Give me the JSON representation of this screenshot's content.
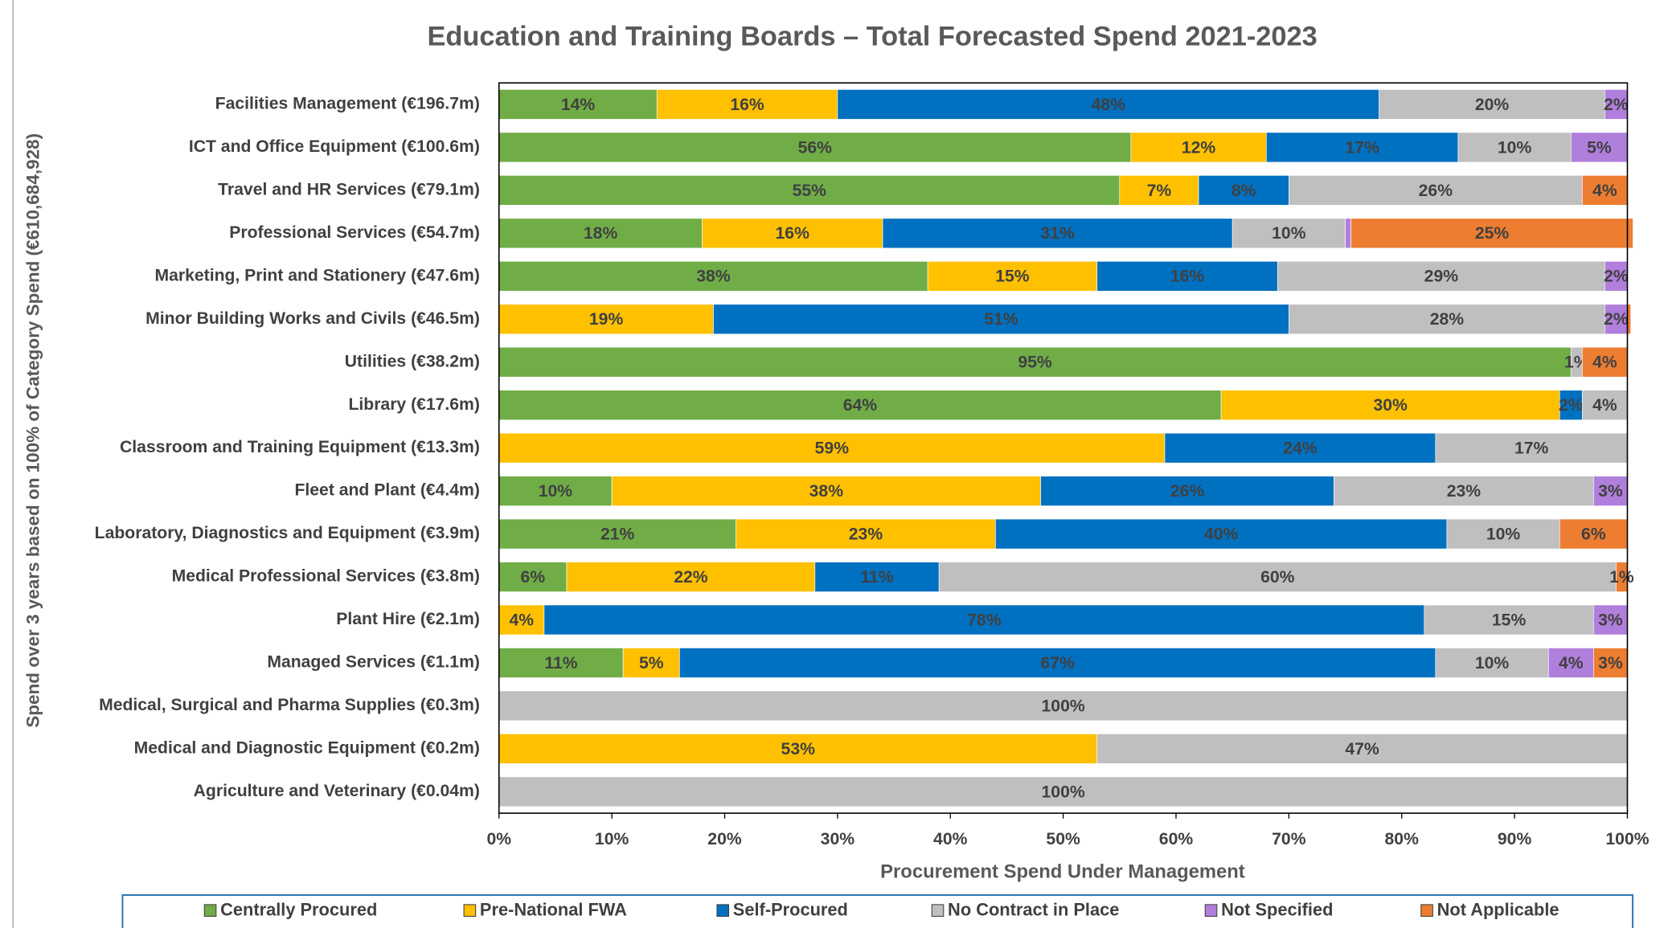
{
  "chart_data": {
    "type": "stacked_barh",
    "title": "Education and Training Boards – Total Forecasted Spend 2021-2023",
    "y_label": "Spend over 3 years based on 100% of Category Spend (€610,684,928)",
    "x_label": "Procurement Spend Under Management",
    "categories": [
      "Facilities Management (€196.7m)",
      "ICT and Office Equipment (€100.6m)",
      "Travel and HR Services (€79.1m)",
      "Professional Services (€54.7m)",
      "Marketing, Print and Stationery (€47.6m)",
      "Minor Building Works and Civils (€46.5m)",
      "Utilities (€38.2m)",
      "Library (€17.6m)",
      "Classroom and Training Equipment (€13.3m)",
      "Fleet and Plant (€4.4m)",
      "Laboratory, Diagnostics and Equipment (€3.9m)",
      "Medical Professional Services (€3.8m)",
      "Plant Hire (€2.1m)",
      "Managed Services (€1.1m)",
      "Medical, Surgical and Pharma Supplies (€0.3m)",
      "Medical and Diagnostic Equipment (€0.2m)",
      "Agriculture and Veterinary (€0.04m)"
    ],
    "series": [
      {
        "name": "Centrally Procured",
        "color": "#70ad47",
        "values": [
          14,
          56,
          55,
          18,
          38,
          null,
          95,
          64,
          null,
          10,
          21,
          6,
          null,
          11,
          null,
          null,
          null
        ],
        "value_labels": [
          "14%",
          "56%",
          "55%",
          "18%",
          "38%",
          null,
          "95%",
          "64%",
          null,
          "10%",
          "21%",
          "6%",
          null,
          "11%",
          null,
          null,
          null
        ]
      },
      {
        "name": "Pre-National FWA",
        "color": "#ffc000",
        "values": [
          16,
          12,
          7,
          16,
          15,
          19,
          null,
          30,
          59,
          38,
          23,
          22,
          4,
          5,
          null,
          53,
          null
        ],
        "value_labels": [
          "16%",
          "12%",
          "7%",
          "16%",
          "15%",
          "19%",
          null,
          "30%",
          "59%",
          "38%",
          "23%",
          "22%",
          "4%",
          "5%",
          null,
          "53%",
          null
        ]
      },
      {
        "name": "Self-Procured",
        "color": "#0070c0",
        "values": [
          48,
          17,
          8,
          31,
          16,
          51,
          null,
          2,
          24,
          26,
          40,
          11,
          78,
          67,
          null,
          null,
          null
        ],
        "value_labels": [
          "48%",
          "17%",
          "8%",
          "31%",
          "16%",
          "51%",
          null,
          "2%",
          "24%",
          "26%",
          "40%",
          "11%",
          "78%",
          "67%",
          null,
          null,
          null
        ]
      },
      {
        "name": "No Contract in Place",
        "color": "#bfbfbf",
        "values": [
          20,
          10,
          26,
          10,
          29,
          28,
          1,
          4,
          17,
          23,
          10,
          60,
          15,
          10,
          100,
          47,
          100
        ],
        "value_labels": [
          "20%",
          "10%",
          "26%",
          "10%",
          "29%",
          "28%",
          "1%",
          "4%",
          "17%",
          "23%",
          "10%",
          "60%",
          "15%",
          "10%",
          "100%",
          "47%",
          "100%"
        ]
      },
      {
        "name": "Not Specified",
        "color": "#b07fdc",
        "values": [
          2,
          5,
          null,
          0.5,
          2,
          2,
          null,
          null,
          null,
          3,
          null,
          null,
          3,
          4,
          null,
          null,
          null
        ],
        "value_labels": [
          "2%",
          "5%",
          null,
          null,
          "2%",
          "2%",
          null,
          null,
          null,
          "3%",
          null,
          null,
          "3%",
          "4%",
          null,
          null,
          null
        ]
      },
      {
        "name": "Not Applicable",
        "color": "#ed7d31",
        "values": [
          null,
          null,
          4,
          25,
          null,
          0.3,
          4,
          null,
          null,
          null,
          6,
          1,
          null,
          3,
          null,
          null,
          null
        ],
        "value_labels": [
          null,
          null,
          "4%",
          "25%",
          null,
          null,
          "4%",
          null,
          null,
          null,
          "6%",
          "1%",
          null,
          "3%",
          null,
          null,
          null
        ]
      }
    ],
    "xlim": [
      0,
      100
    ],
    "xticks": [
      {
        "value": 0,
        "label": "0%"
      },
      {
        "value": 10,
        "label": "10%"
      },
      {
        "value": 20,
        "label": "20%"
      },
      {
        "value": 30,
        "label": "30%"
      },
      {
        "value": 40,
        "label": "40%"
      },
      {
        "value": 50,
        "label": "50%"
      },
      {
        "value": 60,
        "label": "60%"
      },
      {
        "value": 70,
        "label": "70%"
      },
      {
        "value": 80,
        "label": "80%"
      },
      {
        "value": 90,
        "label": "90%"
      },
      {
        "value": 100,
        "label": "100%"
      }
    ],
    "legend": "bottom"
  }
}
